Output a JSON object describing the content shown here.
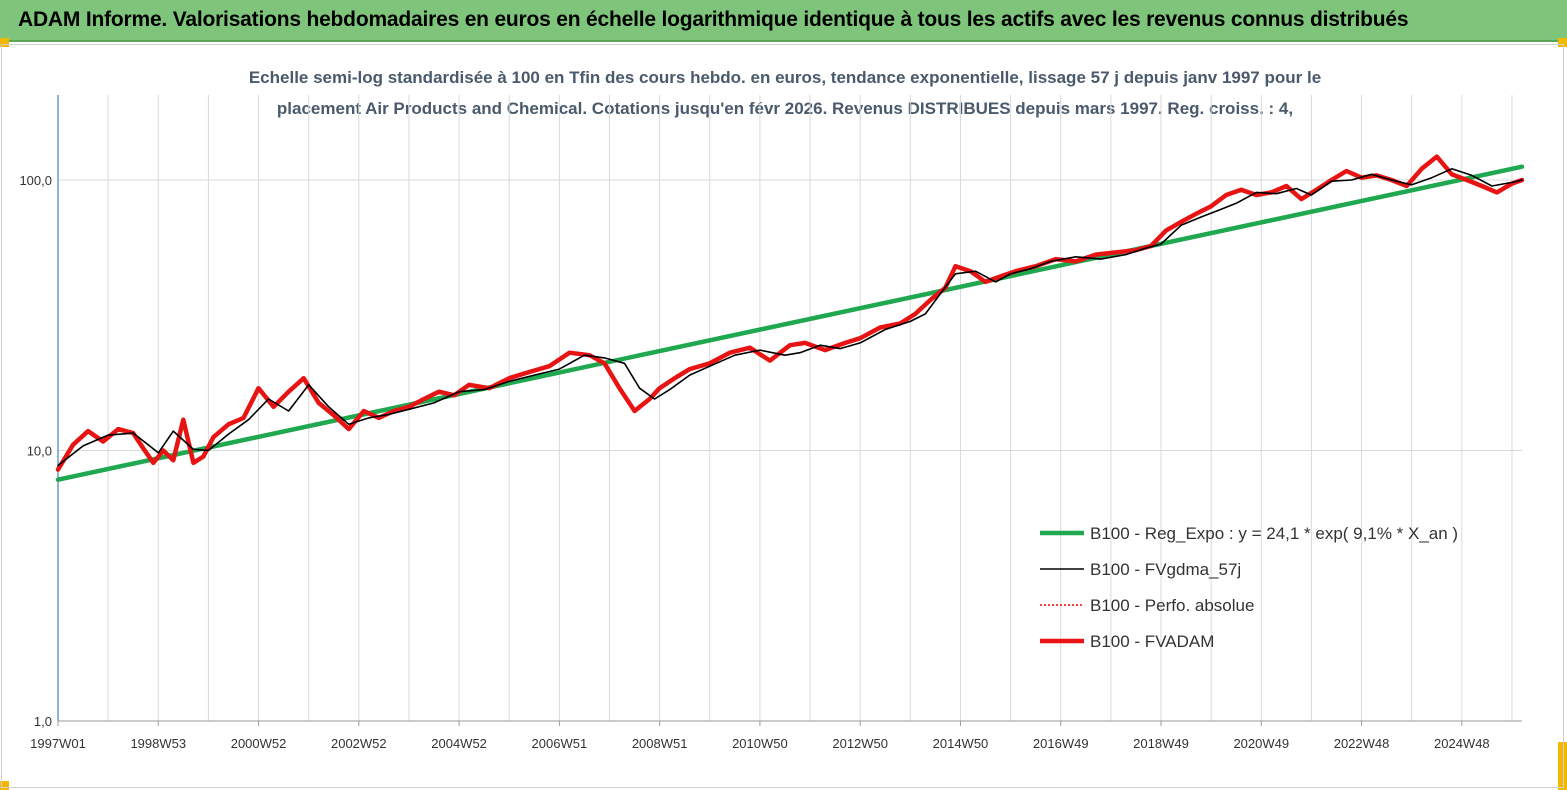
{
  "header": {
    "title": "ADAM Informe. Valorisations hebdomadaires en euros en échelle logarithmique identique à tous les actifs avec les revenus connus distribués"
  },
  "chart_data": {
    "type": "line",
    "title_line1": "Echelle semi-log standardisée à 100 en Tfin des cours hebdo. en euros, tendance exponentielle, lissage 57 j depuis janv 1997 pour le",
    "title_line2": "placement Air Products and Chemical. Cotations jusqu'en févr 2026. Revenus DISTRIBUES depuis mars 1997. Reg. croiss. : 4,",
    "y_scale": "log",
    "ylim": [
      1,
      200
    ],
    "y_ticks": [
      {
        "value": 1,
        "label": "1,0"
      },
      {
        "value": 10,
        "label": "10,0"
      },
      {
        "value": 100,
        "label": "100,0"
      }
    ],
    "x_ticks": [
      "1997W01",
      "1998W53",
      "2000W52",
      "2002W52",
      "2004W52",
      "2006W51",
      "2008W51",
      "2010W50",
      "2012W50",
      "2014W50",
      "2016W49",
      "2018W49",
      "2020W49",
      "2022W48",
      "2024W48"
    ],
    "x_tick_years": [
      1997.0,
      1999.0,
      2001.0,
      2003.0,
      2005.0,
      2007.0,
      2009.0,
      2011.0,
      2013.0,
      2015.0,
      2017.0,
      2019.0,
      2021.0,
      2023.0,
      2025.0
    ],
    "xlim": [
      1997.0,
      2026.2
    ],
    "grid": "vertical and horizontal",
    "legend_position": "lower-right",
    "series": [
      {
        "name": "B100 - Reg_Expo : y = 24,1 * exp( 9,1% * X_an )",
        "color": "#1fa84f",
        "style": "thick",
        "x": [
          1997.0,
          2026.2
        ],
        "y": [
          7.8,
          112
        ]
      },
      {
        "name": "B100 - FVgdma_57j",
        "color": "#000000",
        "style": "thin",
        "x": [
          1997.0,
          1997.5,
          1998.0,
          1998.5,
          1998.8,
          1999.0,
          1999.3,
          1999.7,
          2000.0,
          2000.4,
          2000.8,
          2001.2,
          2001.6,
          2002.0,
          2002.4,
          2002.8,
          2003.2,
          2003.6,
          2004.0,
          2004.5,
          2005.0,
          2005.5,
          2006.0,
          2006.5,
          2007.0,
          2007.5,
          2007.9,
          2008.3,
          2008.6,
          2008.9,
          2009.2,
          2009.6,
          2010.0,
          2010.5,
          2011.0,
          2011.5,
          2011.8,
          2012.2,
          2012.6,
          2013.0,
          2013.5,
          2014.0,
          2014.3,
          2014.6,
          2014.9,
          2015.3,
          2015.7,
          2016.0,
          2016.4,
          2016.8,
          2017.3,
          2017.8,
          2018.3,
          2018.7,
          2019.0,
          2019.4,
          2019.8,
          2020.2,
          2020.5,
          2020.9,
          2021.3,
          2021.7,
          2022.0,
          2022.4,
          2022.8,
          2023.2,
          2023.6,
          2024.0,
          2024.4,
          2024.8,
          2025.2,
          2025.6,
          2026.0,
          2026.2
        ],
        "y": [
          8.8,
          10.4,
          11.4,
          11.6,
          10.5,
          9.8,
          11.8,
          10.1,
          10.0,
          11.5,
          13.0,
          15.5,
          14.0,
          17.5,
          14.5,
          12.5,
          13.2,
          13.6,
          14.2,
          15.0,
          16.5,
          16.8,
          18.0,
          19.0,
          20.0,
          22.5,
          22.0,
          21.0,
          17.0,
          15.5,
          16.8,
          19.0,
          20.5,
          22.5,
          23.5,
          22.5,
          23.0,
          24.5,
          23.8,
          25.0,
          28.0,
          30.0,
          32.0,
          38.0,
          45.0,
          46.0,
          42.0,
          45.0,
          47.0,
          50.0,
          52.0,
          51.0,
          53.0,
          56.0,
          58.0,
          68.0,
          73.0,
          78.0,
          82.0,
          90.0,
          89.0,
          93.0,
          88.0,
          99.0,
          100.0,
          105.0,
          100.0,
          96.0,
          102.0,
          110.0,
          104.0,
          95.0,
          98.0,
          100.0
        ]
      },
      {
        "name": "B100 - Perfo. absolue",
        "color": "#ff0000",
        "style": "dotted",
        "x": [],
        "y": []
      },
      {
        "name": "B100 - FVADAM",
        "color": "#e81414",
        "style": "thick",
        "x": [
          1997.0,
          1997.3,
          1997.6,
          1997.9,
          1998.2,
          1998.5,
          1998.7,
          1998.9,
          1999.1,
          1999.3,
          1999.5,
          1999.7,
          1999.9,
          2000.1,
          2000.4,
          2000.7,
          2001.0,
          2001.3,
          2001.6,
          2001.9,
          2002.2,
          2002.5,
          2002.8,
          2003.1,
          2003.4,
          2003.7,
          2004.0,
          2004.3,
          2004.6,
          2004.9,
          2005.2,
          2005.6,
          2006.0,
          2006.4,
          2006.8,
          2007.2,
          2007.6,
          2007.9,
          2008.2,
          2008.5,
          2008.8,
          2009.0,
          2009.3,
          2009.6,
          2010.0,
          2010.4,
          2010.8,
          2011.2,
          2011.6,
          2011.9,
          2012.3,
          2012.7,
          2013.0,
          2013.4,
          2013.8,
          2014.1,
          2014.4,
          2014.7,
          2014.9,
          2015.2,
          2015.5,
          2015.8,
          2016.1,
          2016.5,
          2016.9,
          2017.3,
          2017.7,
          2018.1,
          2018.5,
          2018.8,
          2019.1,
          2019.4,
          2019.7,
          2020.0,
          2020.3,
          2020.6,
          2020.9,
          2021.2,
          2021.5,
          2021.8,
          2022.1,
          2022.4,
          2022.7,
          2023.0,
          2023.3,
          2023.6,
          2023.9,
          2024.2,
          2024.5,
          2024.8,
          2025.1,
          2025.4,
          2025.7,
          2026.0,
          2026.2
        ],
        "y": [
          8.5,
          10.5,
          11.8,
          10.8,
          12.0,
          11.6,
          10.2,
          9.0,
          10.0,
          9.2,
          13.0,
          9.0,
          9.5,
          11.2,
          12.5,
          13.2,
          17.0,
          14.5,
          16.5,
          18.5,
          15.0,
          13.5,
          12.0,
          14.0,
          13.2,
          14.0,
          14.5,
          15.5,
          16.5,
          16.0,
          17.5,
          17.0,
          18.5,
          19.5,
          20.5,
          23.0,
          22.5,
          21.0,
          17.0,
          14.0,
          15.5,
          17.0,
          18.5,
          20.0,
          21.0,
          23.0,
          24.0,
          21.5,
          24.5,
          25.0,
          23.5,
          25.0,
          26.0,
          28.5,
          29.5,
          32.0,
          36.0,
          40.0,
          48.0,
          46.0,
          42.0,
          44.0,
          46.0,
          48.0,
          51.0,
          50.0,
          53.0,
          54.0,
          55.0,
          57.0,
          65.0,
          70.0,
          75.0,
          80.0,
          88.0,
          92.0,
          88.0,
          90.0,
          95.0,
          85.0,
          92.0,
          100.0,
          108.0,
          102.0,
          104.0,
          100.0,
          95.0,
          110.0,
          122.0,
          105.0,
          100.0,
          95.0,
          90.0,
          97.0,
          100.0
        ]
      }
    ]
  }
}
